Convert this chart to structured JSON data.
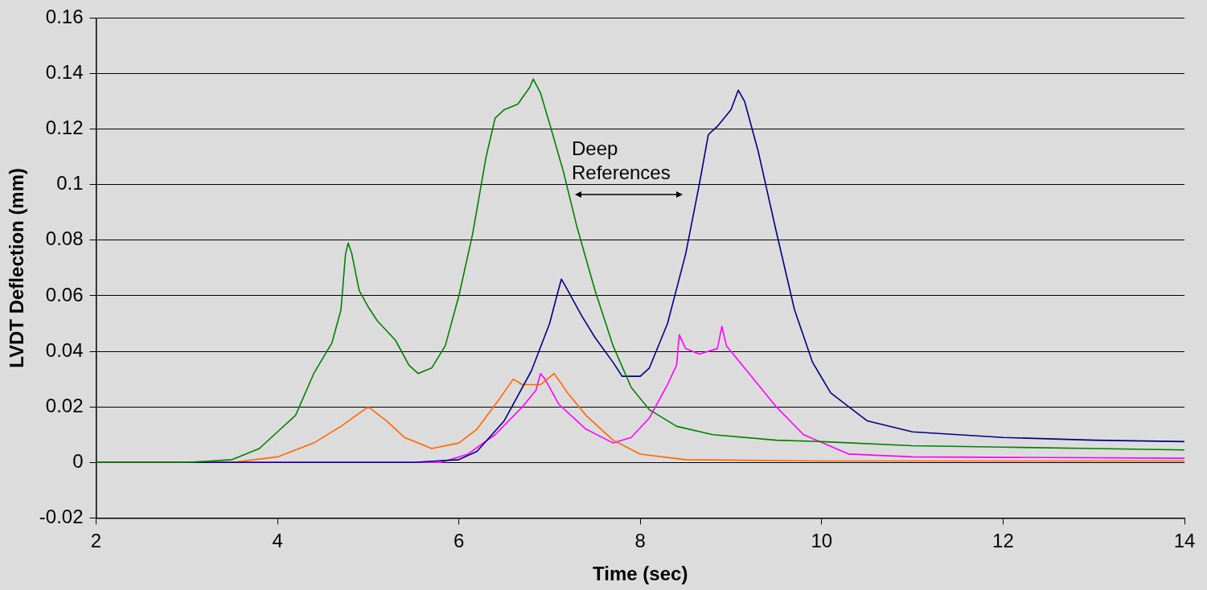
{
  "chart_data": {
    "type": "line",
    "xlabel": "Time (sec)",
    "ylabel": "LVDT Deflection (mm)",
    "xlim": [
      2,
      14
    ],
    "xticks": [
      2,
      4,
      6,
      8,
      10,
      12,
      14
    ],
    "ylim": [
      -0.02,
      0.16
    ],
    "yticks": [
      -0.02,
      0,
      0.02,
      0.04,
      0.06,
      0.08,
      0.1,
      0.12,
      0.14,
      0.16
    ],
    "grid": "y",
    "legend": false,
    "marker": "none",
    "line_style": "solid",
    "annotations": [
      "Deep References"
    ],
    "series": [
      {
        "color": "#008000",
        "x": [
          2,
          3,
          3.5,
          3.8,
          4.0,
          4.2,
          4.4,
          4.6,
          4.7,
          4.75,
          4.78,
          4.82,
          4.9,
          5.0,
          5.1,
          5.3,
          5.45,
          5.55,
          5.7,
          5.85,
          6.0,
          6.15,
          6.3,
          6.4,
          6.5,
          6.65,
          6.78,
          6.82,
          6.9,
          7.0,
          7.15,
          7.3,
          7.5,
          7.7,
          7.9,
          8.1,
          8.4,
          8.8,
          9.5,
          10,
          11,
          12,
          13,
          14
        ],
        "values": [
          0,
          0,
          0.001,
          0.005,
          0.011,
          0.017,
          0.032,
          0.043,
          0.055,
          0.075,
          0.079,
          0.075,
          0.062,
          0.056,
          0.051,
          0.044,
          0.035,
          0.032,
          0.034,
          0.042,
          0.06,
          0.082,
          0.11,
          0.124,
          0.127,
          0.129,
          0.135,
          0.138,
          0.133,
          0.122,
          0.105,
          0.085,
          0.062,
          0.042,
          0.027,
          0.019,
          0.013,
          0.01,
          0.008,
          0.0075,
          0.006,
          0.0055,
          0.005,
          0.0045
        ]
      },
      {
        "color": "#000080",
        "x": [
          2,
          5.5,
          6.0,
          6.2,
          6.5,
          6.8,
          7.0,
          7.08,
          7.13,
          7.2,
          7.35,
          7.5,
          7.7,
          7.8,
          8.0,
          8.1,
          8.3,
          8.5,
          8.65,
          8.75,
          8.85,
          9.0,
          9.08,
          9.15,
          9.3,
          9.5,
          9.7,
          9.9,
          10.1,
          10.5,
          11,
          12,
          13,
          14
        ],
        "values": [
          0,
          0,
          0.001,
          0.004,
          0.015,
          0.033,
          0.05,
          0.06,
          0.066,
          0.062,
          0.053,
          0.045,
          0.036,
          0.031,
          0.031,
          0.034,
          0.05,
          0.075,
          0.1,
          0.118,
          0.121,
          0.127,
          0.134,
          0.13,
          0.112,
          0.083,
          0.055,
          0.036,
          0.025,
          0.015,
          0.011,
          0.009,
          0.008,
          0.0075
        ]
      },
      {
        "color": "#ff6600",
        "x": [
          2,
          3.5,
          4.0,
          4.4,
          4.7,
          5.0,
          5.2,
          5.4,
          5.7,
          6.0,
          6.2,
          6.45,
          6.6,
          6.7,
          6.9,
          7.05,
          7.2,
          7.4,
          7.7,
          8.0,
          8.5,
          10,
          14
        ],
        "values": [
          0,
          0,
          0.002,
          0.007,
          0.013,
          0.02,
          0.015,
          0.009,
          0.005,
          0.007,
          0.012,
          0.023,
          0.03,
          0.028,
          0.028,
          0.032,
          0.025,
          0.017,
          0.008,
          0.003,
          0.001,
          0.0005,
          0.0005
        ]
      },
      {
        "color": "#ff00ff",
        "x": [
          2,
          5.8,
          6.1,
          6.4,
          6.7,
          6.85,
          6.9,
          6.95,
          7.1,
          7.4,
          7.7,
          7.9,
          8.1,
          8.3,
          8.4,
          8.43,
          8.5,
          8.65,
          8.85,
          8.9,
          8.95,
          9.2,
          9.5,
          9.8,
          10.3,
          11,
          14
        ],
        "values": [
          0,
          0,
          0.003,
          0.01,
          0.02,
          0.026,
          0.032,
          0.03,
          0.021,
          0.012,
          0.007,
          0.009,
          0.016,
          0.028,
          0.035,
          0.046,
          0.041,
          0.039,
          0.041,
          0.049,
          0.042,
          0.032,
          0.02,
          0.01,
          0.003,
          0.002,
          0.0015
        ]
      }
    ]
  }
}
